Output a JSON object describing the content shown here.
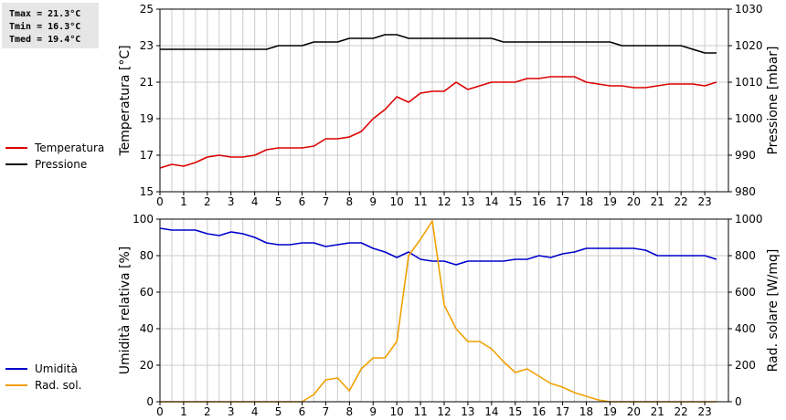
{
  "stats": {
    "tmax": "Tmax = 21.3°C",
    "tmin": "Tmin = 16.3°C",
    "tmed": "Tmed = 19.4°C"
  },
  "colors": {
    "temperature": "#dd0000",
    "pressure": "#000000",
    "humidity": "#0000cc",
    "solar": "#f0a000",
    "grid": "#cccccc"
  },
  "chart_data": [
    {
      "type": "line",
      "xlim": [
        0,
        24
      ],
      "x_ticks": [
        "0",
        "1",
        "2",
        "3",
        "4",
        "5",
        "6",
        "7",
        "8",
        "9",
        "10",
        "11",
        "12",
        "13",
        "14",
        "15",
        "16",
        "17",
        "18",
        "19",
        "20",
        "21",
        "22",
        "23"
      ],
      "grid": true,
      "legend_position": "left",
      "y_left": {
        "label": "Temperatura [°C]",
        "lim": [
          15,
          25
        ],
        "ticks": [
          "15",
          "17",
          "19",
          "21",
          "23",
          "25"
        ]
      },
      "y_right": {
        "label": "Pressione [mbar]",
        "lim": [
          980,
          1030
        ],
        "ticks": [
          "980",
          "990",
          "1000",
          "1010",
          "1020",
          "1030"
        ]
      },
      "series": [
        {
          "name": "Temperatura",
          "axis": "left",
          "x": [
            0,
            0.5,
            1,
            1.5,
            2,
            2.5,
            3,
            3.5,
            4,
            4.5,
            5,
            5.5,
            6,
            6.5,
            7,
            7.5,
            8,
            8.5,
            9,
            9.5,
            10,
            10.5,
            11,
            11.5,
            12,
            12.5,
            13,
            13.5,
            14,
            14.5,
            15,
            15.5,
            16,
            16.5,
            17,
            17.5,
            18,
            18.5,
            19,
            19.5,
            20,
            20.5,
            21,
            21.5,
            22,
            22.5,
            23,
            23.5
          ],
          "y": [
            16.3,
            16.5,
            16.4,
            16.6,
            16.9,
            17.0,
            16.9,
            16.9,
            17.0,
            17.3,
            17.4,
            17.4,
            17.4,
            17.5,
            17.9,
            17.9,
            18.0,
            18.3,
            19.0,
            19.5,
            20.2,
            19.9,
            20.4,
            20.5,
            20.5,
            21.0,
            20.6,
            20.8,
            21.0,
            21.0,
            21.0,
            21.2,
            21.2,
            21.3,
            21.3,
            21.3,
            21.0,
            20.9,
            20.8,
            20.8,
            20.7,
            20.7,
            20.8,
            20.9,
            20.9,
            20.9,
            20.8,
            21.0
          ]
        },
        {
          "name": "Pressione",
          "axis": "right",
          "x": [
            0,
            0.5,
            1,
            1.5,
            2,
            2.5,
            3,
            3.5,
            4,
            4.5,
            5,
            5.5,
            6,
            6.5,
            7,
            7.5,
            8,
            8.5,
            9,
            9.5,
            10,
            10.5,
            11,
            11.5,
            12,
            12.5,
            13,
            13.5,
            14,
            14.5,
            15,
            15.5,
            16,
            16.5,
            17,
            17.5,
            18,
            18.5,
            19,
            19.5,
            20,
            20.5,
            21,
            21.5,
            22,
            22.5,
            23,
            23.5
          ],
          "y": [
            1019,
            1019,
            1019,
            1019,
            1019,
            1019,
            1019,
            1019,
            1019,
            1019,
            1020,
            1020,
            1020,
            1021,
            1021,
            1021,
            1022,
            1022,
            1022,
            1023,
            1023,
            1022,
            1022,
            1022,
            1022,
            1022,
            1022,
            1022,
            1022,
            1021,
            1021,
            1021,
            1021,
            1021,
            1021,
            1021,
            1021,
            1021,
            1021,
            1020,
            1020,
            1020,
            1020,
            1020,
            1020,
            1019,
            1018,
            1018
          ]
        }
      ]
    },
    {
      "type": "line",
      "xlim": [
        0,
        24
      ],
      "x_ticks": [
        "0",
        "1",
        "2",
        "3",
        "4",
        "5",
        "6",
        "7",
        "8",
        "9",
        "10",
        "11",
        "12",
        "13",
        "14",
        "15",
        "16",
        "17",
        "18",
        "19",
        "20",
        "21",
        "22",
        "23"
      ],
      "grid": true,
      "legend_position": "left",
      "y_left": {
        "label": "Umidità relativa [%]",
        "lim": [
          0,
          100
        ],
        "ticks": [
          "0",
          "20",
          "40",
          "60",
          "80",
          "100"
        ]
      },
      "y_right": {
        "label": "Rad. solare [W/mq]",
        "lim": [
          0,
          1000
        ],
        "ticks": [
          "0",
          "200",
          "400",
          "600",
          "800",
          "1000"
        ]
      },
      "series": [
        {
          "name": "Umidità",
          "axis": "left",
          "x": [
            0,
            0.5,
            1,
            1.5,
            2,
            2.5,
            3,
            3.5,
            4,
            4.5,
            5,
            5.5,
            6,
            6.5,
            7,
            7.5,
            8,
            8.5,
            9,
            9.5,
            10,
            10.5,
            11,
            11.5,
            12,
            12.5,
            13,
            13.5,
            14,
            14.5,
            15,
            15.5,
            16,
            16.5,
            17,
            17.5,
            18,
            18.5,
            19,
            19.5,
            20,
            20.5,
            21,
            21.5,
            22,
            22.5,
            23,
            23.5
          ],
          "y": [
            95,
            94,
            94,
            94,
            92,
            91,
            93,
            92,
            90,
            87,
            86,
            86,
            87,
            87,
            85,
            86,
            87,
            87,
            84,
            82,
            79,
            82,
            78,
            77,
            77,
            75,
            77,
            77,
            77,
            77,
            78,
            78,
            80,
            79,
            81,
            82,
            84,
            84,
            84,
            84,
            84,
            83,
            80,
            80,
            80,
            80,
            80,
            78
          ]
        },
        {
          "name": "Rad. sol.",
          "axis": "right",
          "x": [
            0,
            0.5,
            1,
            1.5,
            2,
            2.5,
            3,
            3.5,
            4,
            4.5,
            5,
            5.5,
            6,
            6.5,
            7,
            7.5,
            8,
            8.5,
            9,
            9.5,
            10,
            10.5,
            11,
            11.5,
            12,
            12.5,
            13,
            13.5,
            14,
            14.5,
            15,
            15.5,
            16,
            16.5,
            17,
            17.5,
            18,
            18.5,
            19,
            19.5,
            20,
            20.5,
            21,
            21.5,
            22,
            22.5,
            23,
            23.5
          ],
          "y": [
            0,
            0,
            0,
            0,
            0,
            0,
            0,
            0,
            0,
            0,
            0,
            0,
            0,
            40,
            120,
            130,
            60,
            180,
            240,
            240,
            330,
            800,
            890,
            990,
            530,
            400,
            330,
            330,
            290,
            220,
            160,
            180,
            140,
            100,
            80,
            50,
            30,
            10,
            0,
            0,
            0,
            0,
            0,
            0,
            0,
            0,
            0,
            0
          ]
        }
      ]
    }
  ]
}
